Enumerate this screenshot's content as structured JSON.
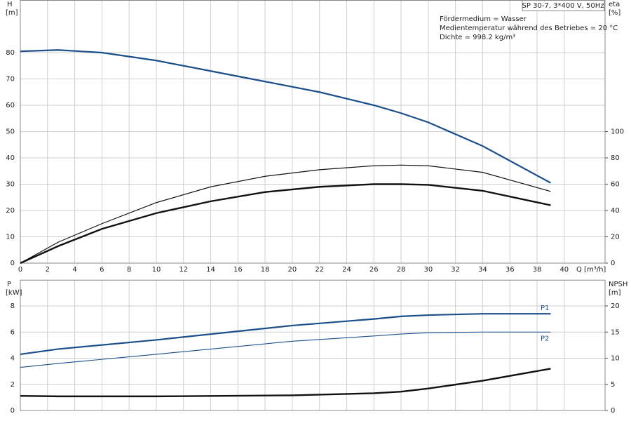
{
  "chart_data": [
    {
      "type": "line",
      "title": "SP 30-7, 3*400 V, 50Hz",
      "annotations": [
        "Fördermedium = Wasser",
        "Medientemperatur während des Betriebes = 20 °C",
        "Dichte = 998.2 kg/m³"
      ],
      "y_label": "H",
      "y_unit": "[m]",
      "y2_label": "eta",
      "y2_unit": "[%]",
      "x_label": "Q [m³/h]",
      "x": [
        0,
        2.8,
        6,
        10,
        14,
        18,
        22,
        26,
        28,
        30,
        34,
        39
      ],
      "xlim": [
        0,
        43
      ],
      "xticks": [
        0,
        2,
        4,
        6,
        8,
        10,
        12,
        14,
        16,
        18,
        20,
        22,
        24,
        26,
        28,
        30,
        32,
        34,
        36,
        38,
        40
      ],
      "ylim": [
        0,
        100
      ],
      "yticks": [
        0,
        10,
        20,
        30,
        40,
        50,
        60,
        70,
        80
      ],
      "y2lim": [
        0,
        200
      ],
      "y2ticks": [
        0,
        20,
        40,
        60,
        80,
        100
      ],
      "grid": true,
      "series": [
        {
          "color": "#1b4f8c",
          "linewidth": 2.2,
          "values": [
            80.5,
            81,
            80,
            77,
            73,
            69,
            65,
            60,
            57,
            53.5,
            44.5,
            30.5
          ]
        },
        {
          "color": "#111111",
          "linewidth": 1.2,
          "axis": "y2",
          "values": [
            0,
            16,
            30,
            46,
            58,
            66,
            71,
            74,
            74.5,
            74,
            69,
            54.5
          ]
        },
        {
          "color": "#111111",
          "linewidth": 2.4,
          "axis": "y2",
          "values": [
            0,
            13,
            26,
            38,
            47,
            54,
            58,
            60,
            60,
            59.5,
            55,
            44
          ]
        }
      ]
    },
    {
      "type": "line",
      "y_label": "P",
      "y_unit": "[kW]",
      "y2_label": "NPSH",
      "y2_unit": "[m]",
      "x": [
        0,
        2.8,
        10,
        20,
        26,
        28,
        30,
        34,
        39
      ],
      "xlim": [
        0,
        43
      ],
      "ylim": [
        0,
        10
      ],
      "yticks": [
        0,
        2,
        4,
        6,
        8
      ],
      "y2lim": [
        0,
        25
      ],
      "y2ticks": [
        0,
        5,
        10,
        15,
        20
      ],
      "grid": true,
      "series": [
        {
          "name": "P1",
          "color": "#1b4f8c",
          "linewidth": 2.2,
          "values": [
            4.3,
            4.7,
            5.4,
            6.5,
            7.0,
            7.2,
            7.3,
            7.4,
            7.4
          ]
        },
        {
          "name": "P2",
          "color": "#1b4f8c",
          "linewidth": 1.1,
          "values": [
            3.3,
            3.6,
            4.3,
            5.3,
            5.7,
            5.85,
            5.95,
            6.0,
            6.0
          ]
        },
        {
          "color": "#111111",
          "linewidth": 2.4,
          "axis": "y2",
          "values": [
            2.8,
            2.7,
            2.7,
            2.9,
            3.3,
            3.6,
            4.2,
            5.7,
            8.0
          ]
        }
      ]
    }
  ]
}
